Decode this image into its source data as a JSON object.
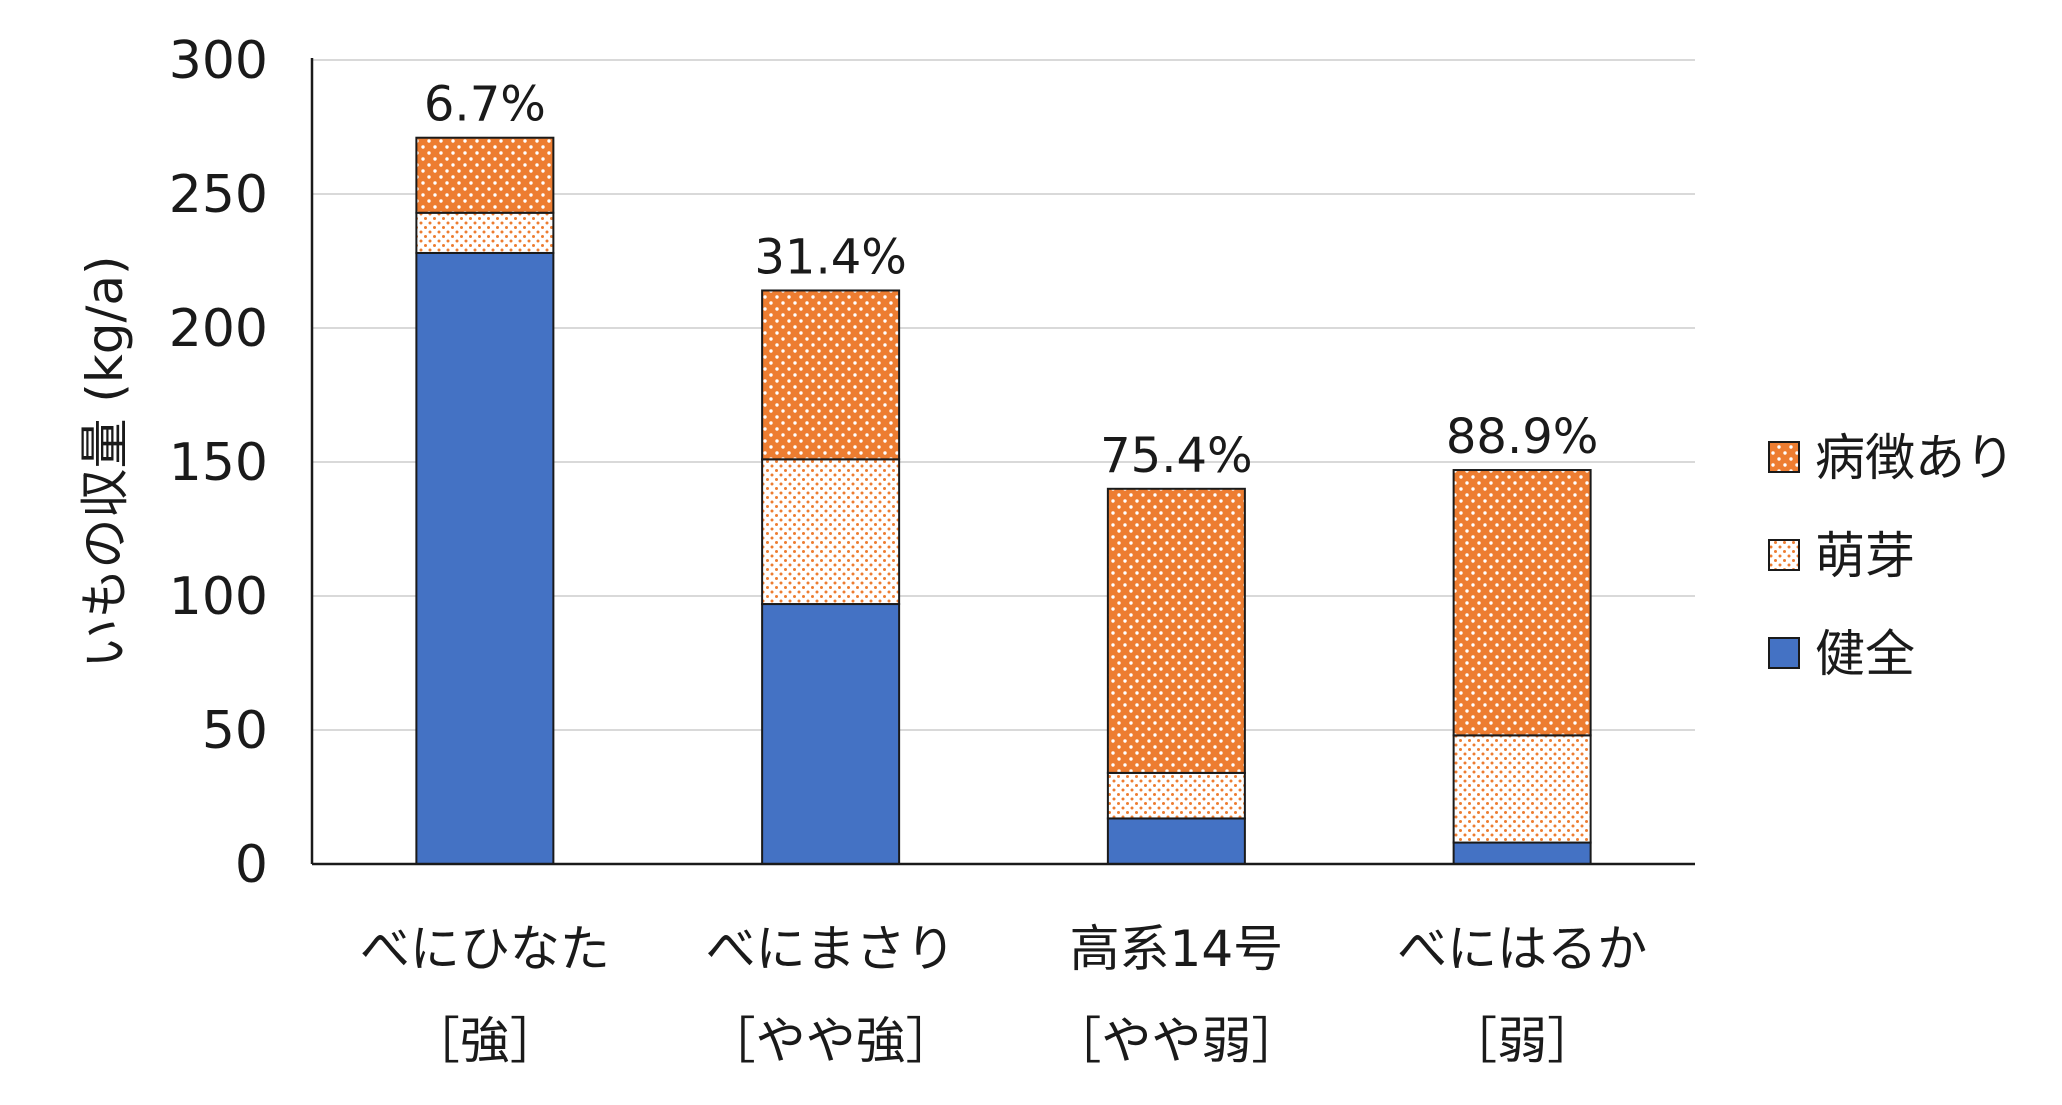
{
  "chart_data": {
    "type": "bar",
    "stacked": true,
    "ylabel": "いもの収量 (kg/a)",
    "ylim": [
      0,
      300
    ],
    "yticks": [
      0,
      50,
      100,
      150,
      200,
      250,
      300
    ],
    "grid": true,
    "legend_position": "right",
    "categories": [
      {
        "name": "べにひなた",
        "tag": "［強］"
      },
      {
        "name": "べにまさり",
        "tag": "［やや強］"
      },
      {
        "name": "高系14号",
        "tag": "［やや弱］"
      },
      {
        "name": "べにはるか",
        "tag": "［弱］"
      }
    ],
    "series": [
      {
        "name": "健全",
        "values": [
          228,
          97,
          17,
          8
        ],
        "color": "#4472c4",
        "pattern": "solid"
      },
      {
        "name": "萌芽",
        "values": [
          15,
          54,
          17,
          40
        ],
        "color": "#ed7d31",
        "pattern": "fine-dots"
      },
      {
        "name": "病徴あり",
        "values": [
          28,
          63,
          106,
          99
        ],
        "color": "#ed7d31",
        "pattern": "coarse-dots"
      }
    ],
    "data_labels": [
      "6.7%",
      "31.4%",
      "75.4%",
      "88.9%"
    ]
  }
}
